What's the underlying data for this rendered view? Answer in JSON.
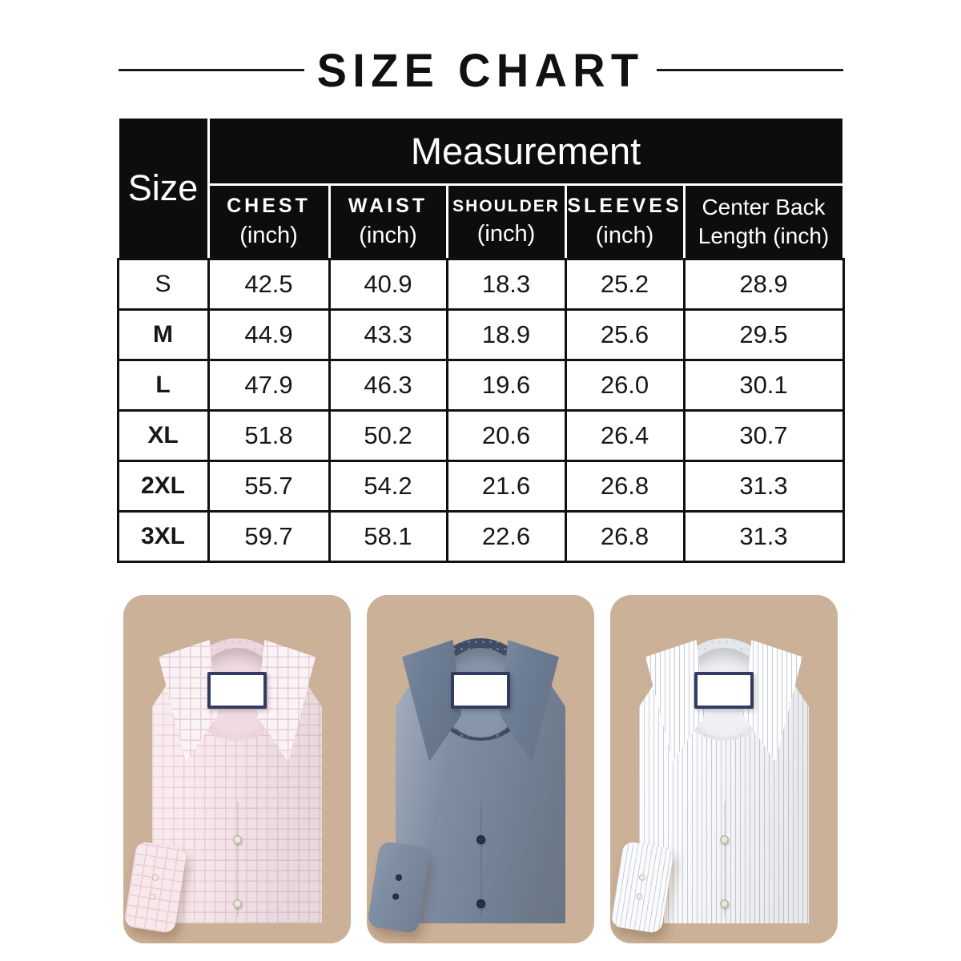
{
  "title": "SIZE CHART",
  "table": {
    "corner_label": "Size",
    "group_header": "Measurement",
    "columns": [
      {
        "name": "CHEST",
        "unit": "(inch)"
      },
      {
        "name": "WAIST",
        "unit": "(inch)"
      },
      {
        "name": "SHOULDER",
        "unit": "(inch)"
      },
      {
        "name": "SLEEVES",
        "unit": "(inch)"
      },
      {
        "name": "Center Back",
        "unit": "Length (inch)"
      }
    ],
    "rows": [
      {
        "size": "S",
        "values": [
          "42.5",
          "40.9",
          "18.3",
          "25.2",
          "28.9"
        ]
      },
      {
        "size": "M",
        "values": [
          "44.9",
          "43.3",
          "18.9",
          "25.6",
          "29.5"
        ]
      },
      {
        "size": "L",
        "values": [
          "47.9",
          "46.3",
          "19.6",
          "26.0",
          "30.1"
        ]
      },
      {
        "size": "XL",
        "values": [
          "51.8",
          "50.2",
          "20.6",
          "26.4",
          "30.7"
        ]
      },
      {
        "size": "2XL",
        "values": [
          "55.7",
          "54.2",
          "21.6",
          "26.8",
          "31.3"
        ]
      },
      {
        "size": "3XL",
        "values": [
          "59.7",
          "58.1",
          "22.6",
          "26.8",
          "31.3"
        ]
      }
    ]
  },
  "chart_data": {
    "type": "table",
    "title": "SIZE CHART",
    "group_header": "Measurement",
    "row_header": "Size",
    "columns": [
      "CHEST (inch)",
      "WAIST (inch)",
      "SHOULDER (inch)",
      "SLEEVES (inch)",
      "Center Back Length (inch)"
    ],
    "rows": [
      [
        "S",
        42.5,
        40.9,
        18.3,
        25.2,
        28.9
      ],
      [
        "M",
        44.9,
        43.3,
        18.9,
        25.6,
        29.5
      ],
      [
        "L",
        47.9,
        46.3,
        19.6,
        26.0,
        30.1
      ],
      [
        "XL",
        51.8,
        50.2,
        20.6,
        26.4,
        30.7
      ],
      [
        "2XL",
        55.7,
        54.2,
        21.6,
        26.8,
        31.3
      ],
      [
        "3XL",
        59.7,
        58.1,
        22.6,
        26.8,
        31.3
      ]
    ]
  },
  "colors": {
    "page_bg": "#ffffff",
    "header_bg": "#0d0d0d",
    "header_text": "#ffffff",
    "body_text": "#171717",
    "table_line": "#111111",
    "card_bg": "#cbb197",
    "label_fill": "#ffffff",
    "label_border": "#333b63"
  },
  "shirts": [
    {
      "id": "pink-check",
      "description": "light pink checked dress shirt, folded, white label at collar",
      "pattern": "check",
      "colors": {
        "fabric_base": "#f7e8ec",
        "fabric_line": "#ecccd7",
        "collar": "#faf3f5",
        "inner": "#f1dbe2",
        "band": "#eed6dd",
        "band_dot": "#e5c6cf",
        "button": "#f5efe7",
        "button_edge": "#c7b9ab"
      }
    },
    {
      "id": "blue",
      "description": "steel blue dress shirt, folded, dark patterned inner collar, navy buttons",
      "pattern": "solid",
      "colors": {
        "fabric_base": "#7e8da2",
        "fabric_line": "#7e8da2",
        "collar": "#6d7d93",
        "inner": "#8796aa",
        "band": "#3f4c66",
        "band_dot": "#6b7890",
        "button": "#283450",
        "button_edge": "#1c2540"
      }
    },
    {
      "id": "white-stripe",
      "description": "white dress shirt with fine gray stripes, folded",
      "pattern": "stripe",
      "colors": {
        "fabric_base": "#fafbfc",
        "fabric_line": "#c9cdd6",
        "collar": "#fdfdfe",
        "inner": "#eef0f3",
        "band": "#e3e6eb",
        "band_dot": "#d3d7de",
        "button": "#efece6",
        "button_edge": "#c2bdb2"
      }
    }
  ]
}
